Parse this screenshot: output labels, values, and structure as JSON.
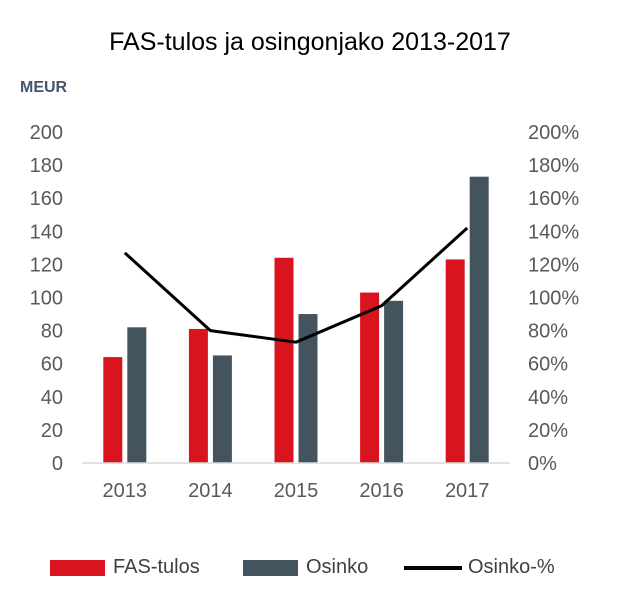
{
  "chart_data": {
    "type": "bar",
    "title": "FAS-tulos ja osingonjako 2013-2017",
    "unit_label": "MEUR",
    "categories": [
      "2013",
      "2014",
      "2015",
      "2016",
      "2017"
    ],
    "series": [
      {
        "name": "FAS-tulos",
        "type": "bar",
        "axis": "left",
        "color": "#d9141f",
        "values": [
          64,
          81,
          124,
          103,
          123
        ]
      },
      {
        "name": "Osinko",
        "type": "bar",
        "axis": "left",
        "color": "#44545e",
        "values": [
          82,
          65,
          90,
          98,
          173
        ]
      },
      {
        "name": "Osinko-%",
        "type": "line",
        "axis": "right",
        "color": "#000000",
        "values": [
          127,
          80,
          73,
          95,
          142
        ]
      }
    ],
    "left_axis": {
      "min": 0,
      "max": 200,
      "step": 20,
      "ticks": [
        "0",
        "20",
        "40",
        "60",
        "80",
        "100",
        "120",
        "140",
        "160",
        "180",
        "200"
      ]
    },
    "right_axis": {
      "min": 0,
      "max": 200,
      "step": 20,
      "ticks": [
        "0%",
        "20%",
        "40%",
        "60%",
        "80%",
        "100%",
        "120%",
        "140%",
        "160%",
        "180%",
        "200%"
      ]
    },
    "grid": false,
    "legend_position": "bottom"
  }
}
